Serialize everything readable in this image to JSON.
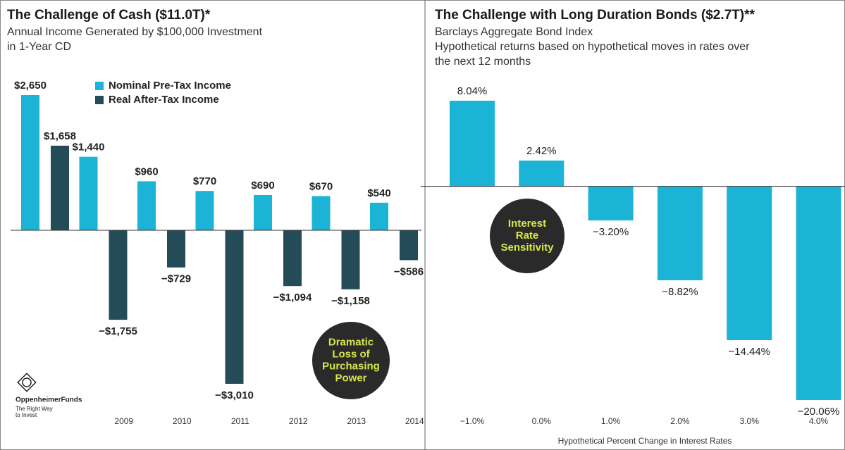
{
  "chart_data": [
    {
      "type": "bar",
      "title": "The Challenge of Cash ($11.0T)*",
      "subtitle": [
        "Annual Income Generated by $100,000 Investment",
        "in 1-Year CD"
      ],
      "categories": [
        null,
        "2009",
        "2010",
        "2011",
        "2012",
        "2013",
        "2014"
      ],
      "series": [
        {
          "name": "Nominal Pre-Tax Income",
          "color": "#1bb4d6",
          "values": [
            2650,
            1440,
            960,
            770,
            690,
            670,
            540
          ],
          "value_labels": [
            "$2,650",
            "$1,440",
            "$960",
            "$770",
            "$690",
            "$670",
            "$540"
          ]
        },
        {
          "name": "Real After-Tax Income",
          "color": "#244c58",
          "values": [
            1658,
            -1755,
            -729,
            -3010,
            -1094,
            -1158,
            -586
          ],
          "value_labels": [
            "$1,658",
            "−$1,755",
            "−$729",
            "−$3,010",
            "−$1,094",
            "−$1,158",
            "−$586"
          ]
        }
      ],
      "annotation": [
        "Dramatic",
        "Loss of",
        "Purchasing",
        "Power"
      ]
    },
    {
      "type": "bar",
      "title": "The Challenge with Long Duration Bonds ($2.7T)**",
      "subtitle": [
        "Barclays Aggregate Bond Index",
        "Hypothetical returns based on hypothetical moves in rates over",
        "the next 12 months"
      ],
      "categories": [
        "−1.0%",
        "0.0%",
        "1.0%",
        "2.0%",
        "3.0%",
        "4.0%"
      ],
      "series": [
        {
          "name": null,
          "color": "#1bb4d6",
          "values": [
            8.04,
            2.42,
            -3.2,
            -8.82,
            -14.44,
            -20.06
          ],
          "value_labels": [
            "8.04%",
            "2.42%",
            "−3.20%",
            "−8.82%",
            "−14.44%",
            "−20.06%"
          ]
        }
      ],
      "x_label": "Hypothetical Percent Change in Interest Rates",
      "annotation": [
        "Interest",
        "Rate",
        "Sensitivity"
      ]
    }
  ],
  "logo": {
    "name": "OppenheimerFunds",
    "tagline": [
      "The Right Way",
      "to Invest"
    ]
  }
}
